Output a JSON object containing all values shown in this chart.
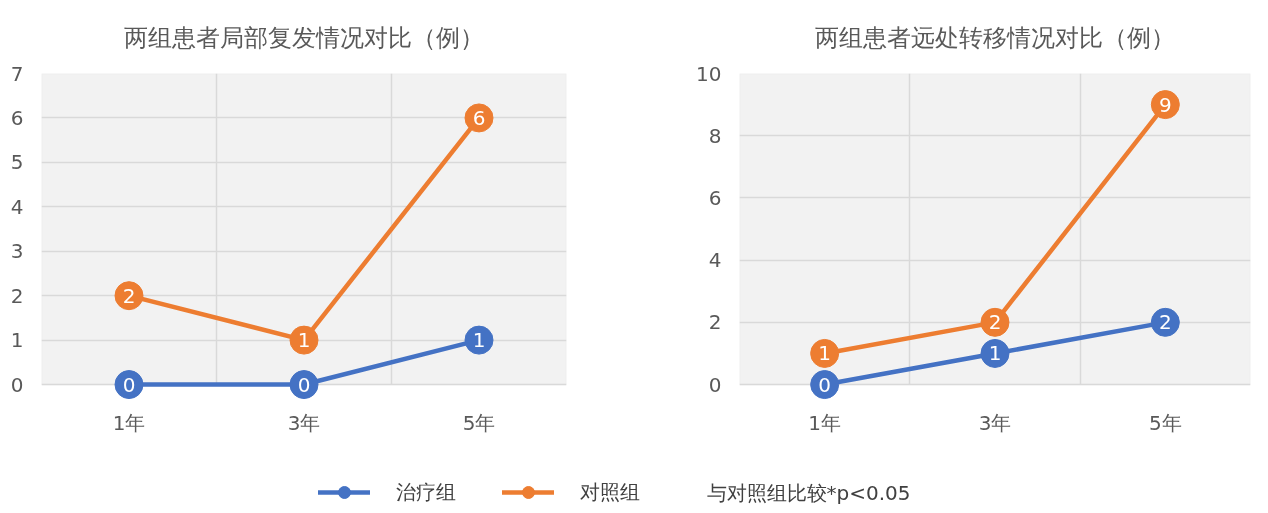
{
  "chart_data": [
    {
      "type": "line",
      "title": "两组患者局部复发情况对比（例）",
      "categories": [
        "1年",
        "3年",
        "5年"
      ],
      "series": [
        {
          "name": "治疗组",
          "color": "#4472c4",
          "values": [
            0,
            0,
            1
          ]
        },
        {
          "name": "对照组",
          "color": "#ed7d31",
          "values": [
            2,
            1,
            6
          ]
        }
      ],
      "ylim": [
        0,
        7
      ],
      "yticks": [
        0,
        1,
        2,
        3,
        4,
        5,
        6,
        7
      ],
      "grid": true,
      "legend": "bottom",
      "marker": "circle",
      "line_style": "solid",
      "data_labels": true
    },
    {
      "type": "line",
      "title": "两组患者远处转移情况对比（例）",
      "categories": [
        "1年",
        "3年",
        "5年"
      ],
      "series": [
        {
          "color": "#4472c4",
          "values": [
            0,
            1,
            2
          ]
        },
        {
          "color": "#ed7d31",
          "values": [
            1,
            2,
            9
          ]
        }
      ],
      "ylim": [
        0,
        10
      ],
      "yticks": [
        0,
        2,
        4,
        6,
        8,
        10
      ],
      "grid": true,
      "marker": "circle",
      "line_style": "solid",
      "data_labels": true,
      "annotations": [
        "与对照组比较*p<0.05"
      ]
    }
  ]
}
